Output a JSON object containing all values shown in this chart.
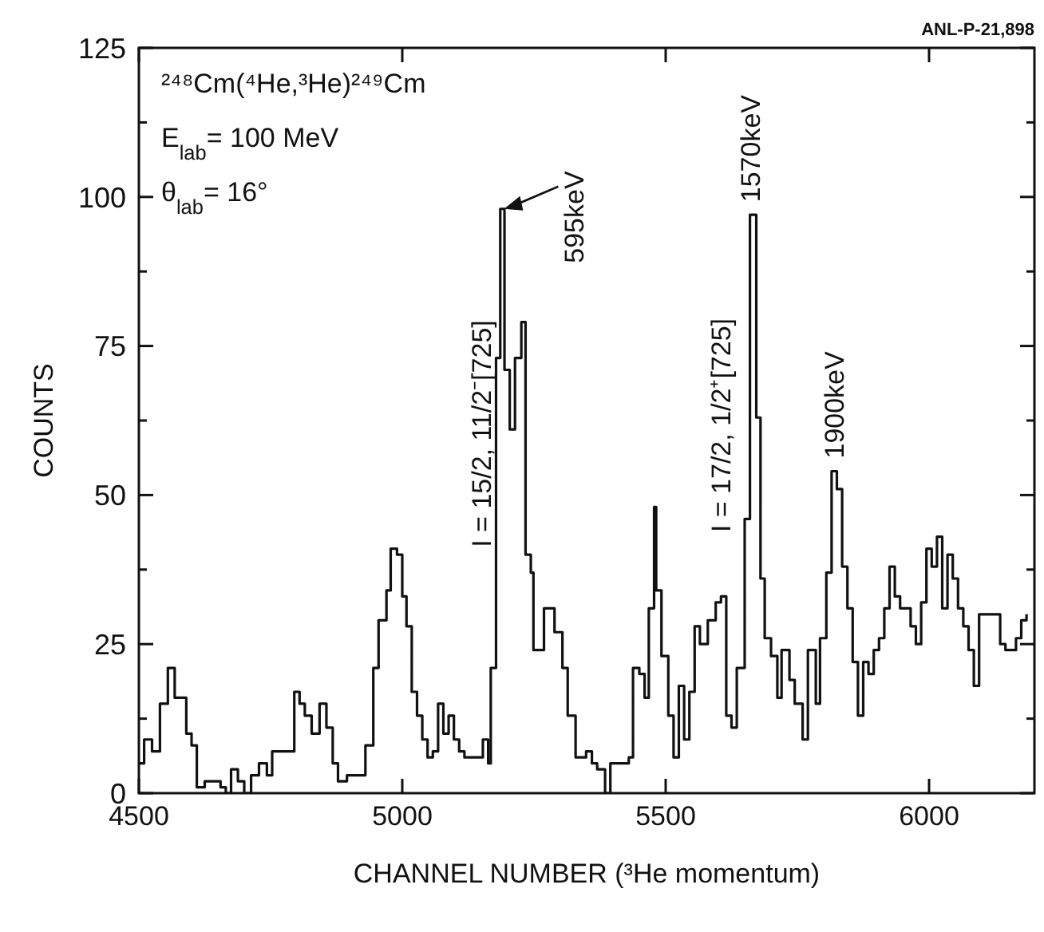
{
  "chart_data": {
    "type": "step",
    "xlabel": "CHANNEL NUMBER (³He momentum)",
    "ylabel": "COUNTS",
    "xlim": [
      4500,
      6200
    ],
    "xticks": [
      4500,
      5000,
      5500,
      6000
    ],
    "ylim": [
      0,
      125
    ],
    "yticks": [
      0,
      {
        "value": 12.5,
        "label": null
      },
      25,
      {
        "value": 37.5,
        "label": null
      },
      50,
      {
        "value": 62.5,
        "label": null
      },
      75,
      {
        "value": 87.5,
        "label": null
      },
      100,
      {
        "value": 112.5,
        "label": null
      },
      125
    ],
    "color": "#111111",
    "x": [
      4500,
      4510,
      4525,
      4540,
      4555,
      4568,
      4590,
      4600,
      4610,
      4625,
      4640,
      4655,
      4665,
      4675,
      4688,
      4700,
      4713,
      4728,
      4743,
      4753,
      4795,
      4805,
      4815,
      4828,
      4843,
      4856,
      4868,
      4878,
      4895,
      4930,
      4945,
      4955,
      4970,
      4978,
      4990,
      5000,
      5008,
      5018,
      5028,
      5038,
      5048,
      5058,
      5068,
      5078,
      5088,
      5098,
      5108,
      5118,
      5153,
      5163,
      5168,
      5178,
      5186,
      5194,
      5204,
      5214,
      5226,
      5234,
      5244,
      5249,
      5269,
      5289,
      5304,
      5314,
      5329,
      5349,
      5360,
      5370,
      5385,
      5395,
      5430,
      5438,
      5450,
      5460,
      5468,
      5478,
      5482,
      5492,
      5505,
      5515,
      5525,
      5535,
      5545,
      5555,
      5565,
      5580,
      5595,
      5605,
      5615,
      5625,
      5635,
      5650,
      5660,
      5672,
      5680,
      5688,
      5700,
      5712,
      5720,
      5735,
      5745,
      5760,
      5770,
      5785,
      5793,
      5805,
      5815,
      5825,
      5835,
      5845,
      5855,
      5865,
      5875,
      5885,
      5895,
      5905,
      5915,
      5925,
      5935,
      5945,
      5965,
      5975,
      5985,
      5995,
      6005,
      6015,
      6025,
      6035,
      6045,
      6055,
      6065,
      6075,
      6085,
      6095,
      6135,
      6145,
      6165,
      6175,
      6185
    ],
    "values": [
      5,
      9,
      7,
      15,
      21,
      16,
      10,
      8,
      1,
      2,
      2,
      1,
      0,
      4,
      2,
      0,
      3,
      5,
      3,
      7,
      17,
      15,
      13,
      10,
      15,
      11,
      5,
      2,
      3,
      8,
      21,
      29,
      34,
      41,
      40,
      33,
      28,
      17,
      13,
      9,
      6,
      7,
      15,
      10,
      13,
      9,
      7,
      6,
      9,
      5,
      21,
      73,
      98,
      71,
      61,
      73,
      79,
      40,
      37,
      24,
      31,
      27,
      21,
      13,
      6,
      7,
      5,
      4,
      0,
      5,
      6,
      21,
      20,
      16,
      31,
      48,
      34,
      23,
      13,
      6,
      18,
      9,
      17,
      28,
      25,
      29,
      32,
      33,
      13,
      11,
      21,
      46,
      97,
      63,
      36,
      26,
      23,
      16,
      24,
      19,
      15,
      9,
      24,
      15,
      26,
      37,
      54,
      51,
      38,
      31,
      22,
      13,
      22,
      20,
      24,
      26,
      31,
      38,
      33,
      31,
      28,
      25,
      32,
      41,
      38,
      43,
      31,
      40,
      36,
      31,
      28,
      24,
      18,
      30,
      25,
      24,
      26,
      29,
      30
    ],
    "annotations": [
      "²⁴⁸Cm(⁴He,³He)²⁴⁹Cm",
      "E$_{lab}$= 100 MeV",
      "θ$_{lab}$= 16°",
      "ANL-P-21,898",
      {
        "text": "595keV",
        "x": 5187,
        "y": 98
      },
      {
        "text": "1570keV",
        "x": 5660,
        "y": 97
      },
      {
        "text": "1900keV",
        "x": 5820,
        "y": 54
      },
      "I = 15/2, 11/2⁻[725]",
      "I = 17/2, 1/2⁺[725]"
    ]
  }
}
